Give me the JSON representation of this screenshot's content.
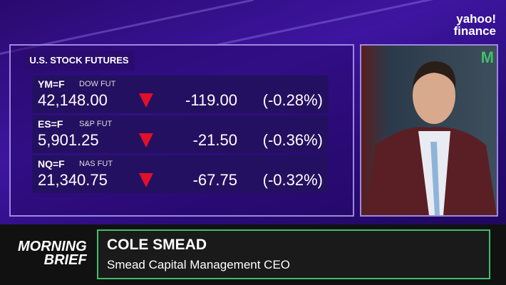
{
  "logo": {
    "line1": "yahoo!",
    "line2": "finance"
  },
  "panel": {
    "title": "U.S. STOCK FUTURES",
    "rows": [
      {
        "symbol": "YM=F",
        "name": "DOW FUT",
        "price": "42,148.00",
        "change": "-119.00",
        "percent": "(-0.28%)"
      },
      {
        "symbol": "ES=F",
        "name": "S&P FUT",
        "price": "5,901.25",
        "change": "-21.50",
        "percent": "(-0.36%)"
      },
      {
        "symbol": "NQ=F",
        "name": "NAS FUT",
        "price": "21,340.75",
        "change": "-67.75",
        "percent": "(-0.32%)"
      }
    ]
  },
  "video": {
    "backdrop_letter": "M"
  },
  "lower_third": {
    "show_line1": "MORNING",
    "show_line2": "BRIEF",
    "guest_name": "COLE SMEAD",
    "guest_title": "Smead Capital Management CEO"
  }
}
